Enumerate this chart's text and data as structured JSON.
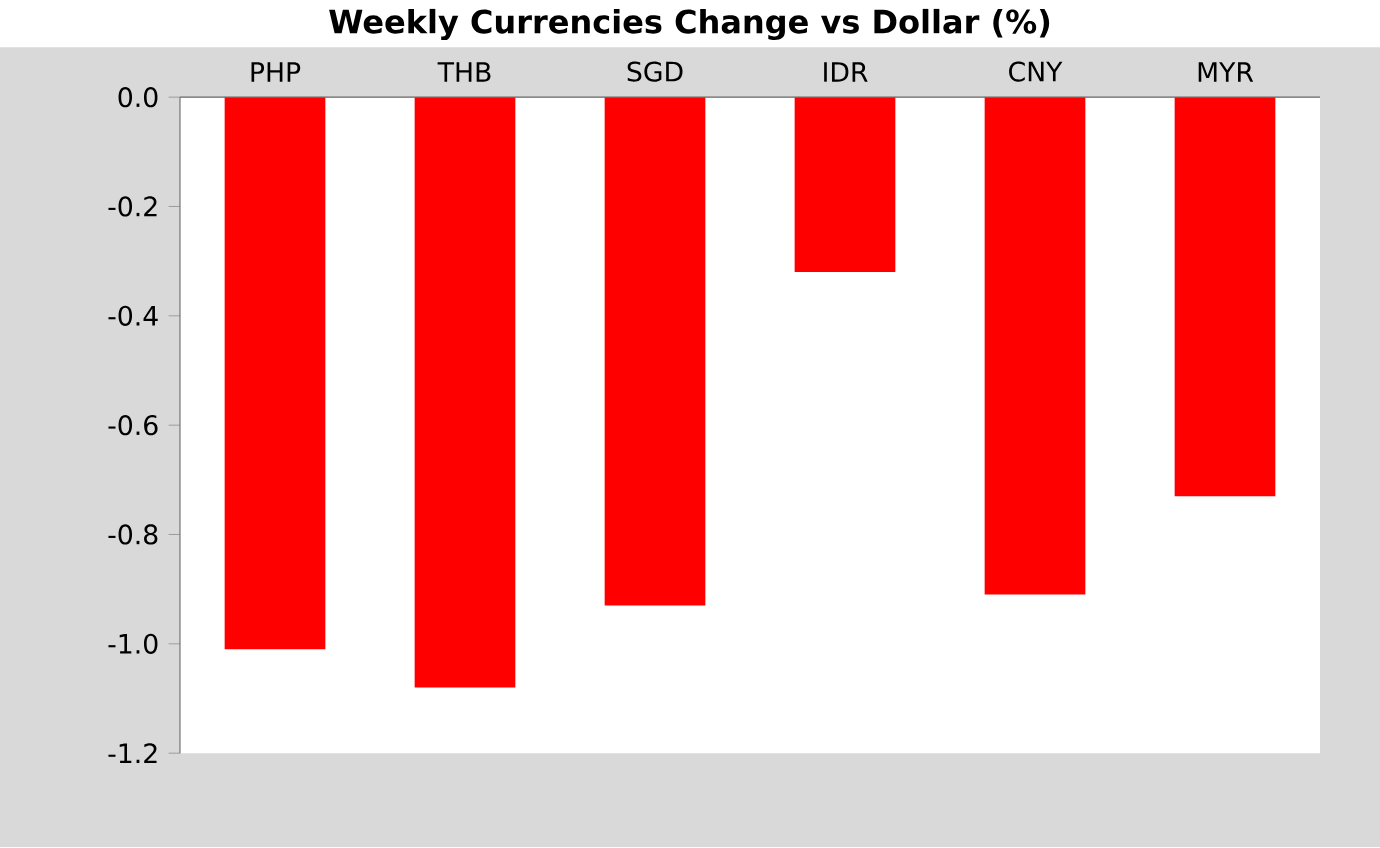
{
  "chart_data": {
    "type": "bar",
    "title": "Weekly Currencies Change vs Dollar (%)",
    "categories": [
      "PHP",
      "THB",
      "SGD",
      "IDR",
      "CNY",
      "MYR"
    ],
    "values": [
      -1.01,
      -1.08,
      -0.93,
      -0.32,
      -0.91,
      -0.73
    ],
    "color": "#ff0000",
    "ylim": [
      -1.2,
      0
    ],
    "yticks": [
      {
        "value": 0,
        "label": "0.0"
      },
      {
        "value": -0.2,
        "label": "-0.2"
      },
      {
        "value": -0.4,
        "label": "-0.4"
      },
      {
        "value": -0.6,
        "label": "-0.6"
      },
      {
        "value": -0.8,
        "label": "-0.8"
      },
      {
        "value": -1.0,
        "label": "-1.0"
      },
      {
        "value": -1.2,
        "label": "-1.2"
      }
    ]
  }
}
